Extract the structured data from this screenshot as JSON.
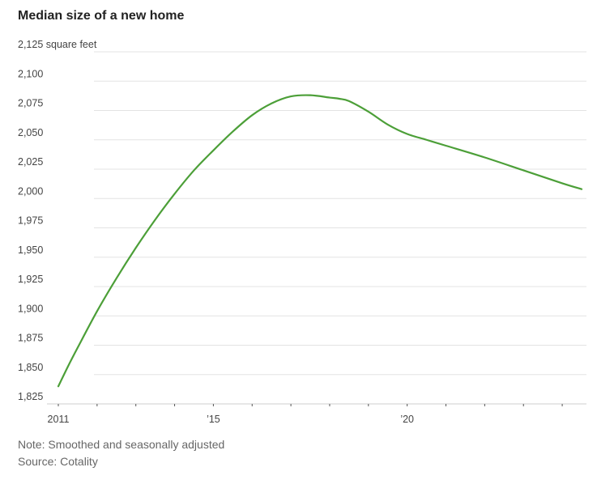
{
  "title": "Median size of a new home",
  "note": "Note: Smoothed and seasonally adjusted",
  "source": "Source: Cotality",
  "line_color": "#4c9f38",
  "chart_data": {
    "type": "line",
    "title": "Median size of a new home",
    "xlabel": "",
    "ylabel": "",
    "y_unit_label": "square feet",
    "ylim": [
      1825,
      2125
    ],
    "xlim": [
      2011,
      2024.5
    ],
    "y_ticks": [
      1825,
      1850,
      1875,
      1900,
      1925,
      1950,
      1975,
      2000,
      2025,
      2050,
      2075,
      2100,
      2125
    ],
    "y_tick_labels": [
      "1,825",
      "1,850",
      "1,875",
      "1,900",
      "1,925",
      "1,950",
      "1,975",
      "2,000",
      "2,025",
      "2,050",
      "2,075",
      "2,100",
      "2,125 square feet"
    ],
    "x_ticks": [
      2011,
      2012,
      2013,
      2014,
      2015,
      2016,
      2017,
      2018,
      2019,
      2020,
      2021,
      2022,
      2023,
      2024
    ],
    "x_tick_labels": [
      {
        "x": 2011,
        "label": "2011"
      },
      {
        "x": 2015,
        "label": "’15"
      },
      {
        "x": 2020,
        "label": "’20"
      }
    ],
    "grid": true,
    "series": [
      {
        "color": "#4c9f38",
        "x": [
          2011,
          2011.25,
          2011.5,
          2012,
          2012.5,
          2013,
          2013.5,
          2014,
          2014.5,
          2015,
          2015.5,
          2016,
          2016.5,
          2017,
          2017.5,
          2018,
          2018.25,
          2018.5,
          2019,
          2019.5,
          2020,
          2020.5,
          2021,
          2022,
          2023,
          2024,
          2024.5
        ],
        "y": [
          1840,
          1857,
          1873,
          1904,
          1932,
          1958,
          1982,
          2004,
          2024,
          2041,
          2057,
          2071,
          2081,
          2087,
          2088,
          2086,
          2085,
          2083,
          2074,
          2063,
          2055,
          2050,
          2045,
          2035,
          2024,
          2013,
          2008
        ]
      }
    ]
  }
}
